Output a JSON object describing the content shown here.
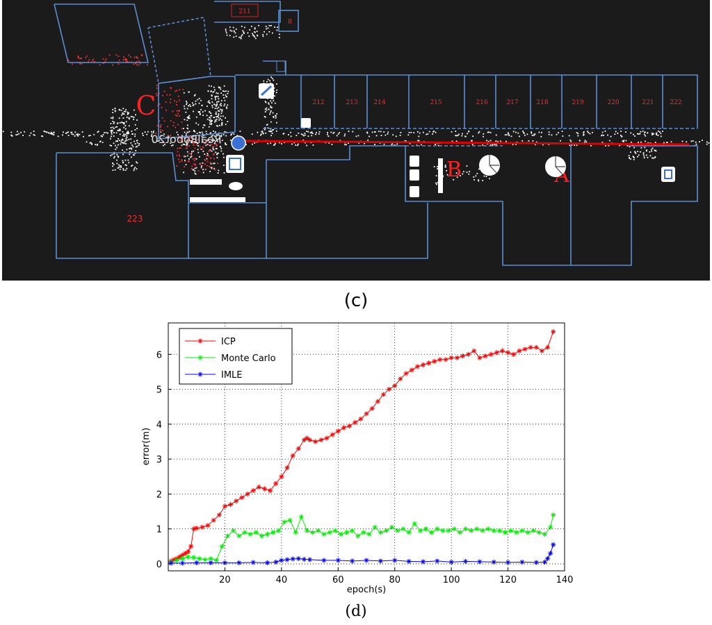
{
  "figure": {
    "caption_c": "(c)",
    "caption_d": "(d)"
  },
  "map": {
    "rooms": [
      "211",
      "8",
      "212",
      "213",
      "214",
      "215",
      "216",
      "217",
      "218",
      "219",
      "220",
      "221",
      "222",
      "223"
    ],
    "point_labels": [
      "A",
      "B",
      "C"
    ],
    "robot_text": "RealRobot20",
    "colors": {
      "background": "#1b1b1b",
      "walls": "#5b8fd6",
      "path": "#e00000",
      "room_labels": "#ff2a2a",
      "scan": "#ffffff"
    }
  },
  "chart_data": {
    "type": "line",
    "xlabel": "epoch(s)",
    "ylabel": "error(m)",
    "xlim": [
      0,
      140
    ],
    "ylim": [
      -0.2,
      6.9
    ],
    "xticks": [
      20,
      40,
      60,
      80,
      100,
      120,
      140
    ],
    "yticks": [
      0,
      1,
      2,
      3,
      4,
      5,
      6
    ],
    "grid": true,
    "legend_position": "top-left",
    "marker": "*",
    "series": [
      {
        "name": "ICP",
        "color": "#ff0000",
        "points": [
          [
            1,
            0.08
          ],
          [
            2,
            0.12
          ],
          [
            3,
            0.15
          ],
          [
            4,
            0.2
          ],
          [
            5,
            0.25
          ],
          [
            6,
            0.3
          ],
          [
            7,
            0.35
          ],
          [
            8,
            0.5
          ],
          [
            9,
            1.0
          ],
          [
            10,
            1.02
          ],
          [
            12,
            1.05
          ],
          [
            14,
            1.1
          ],
          [
            16,
            1.25
          ],
          [
            18,
            1.4
          ],
          [
            20,
            1.65
          ],
          [
            22,
            1.7
          ],
          [
            24,
            1.8
          ],
          [
            26,
            1.9
          ],
          [
            28,
            2.0
          ],
          [
            30,
            2.1
          ],
          [
            32,
            2.2
          ],
          [
            34,
            2.15
          ],
          [
            36,
            2.1
          ],
          [
            38,
            2.3
          ],
          [
            40,
            2.5
          ],
          [
            42,
            2.75
          ],
          [
            44,
            3.1
          ],
          [
            46,
            3.3
          ],
          [
            48,
            3.55
          ],
          [
            49,
            3.6
          ],
          [
            50,
            3.55
          ],
          [
            52,
            3.5
          ],
          [
            54,
            3.55
          ],
          [
            56,
            3.6
          ],
          [
            58,
            3.7
          ],
          [
            60,
            3.8
          ],
          [
            62,
            3.9
          ],
          [
            64,
            3.95
          ],
          [
            66,
            4.05
          ],
          [
            68,
            4.15
          ],
          [
            70,
            4.3
          ],
          [
            72,
            4.45
          ],
          [
            74,
            4.65
          ],
          [
            76,
            4.85
          ],
          [
            78,
            5.0
          ],
          [
            80,
            5.1
          ],
          [
            82,
            5.3
          ],
          [
            84,
            5.45
          ],
          [
            86,
            5.55
          ],
          [
            88,
            5.65
          ],
          [
            90,
            5.7
          ],
          [
            92,
            5.75
          ],
          [
            94,
            5.8
          ],
          [
            96,
            5.85
          ],
          [
            98,
            5.85
          ],
          [
            100,
            5.9
          ],
          [
            102,
            5.9
          ],
          [
            104,
            5.95
          ],
          [
            106,
            6.0
          ],
          [
            108,
            6.1
          ],
          [
            110,
            5.9
          ],
          [
            112,
            5.95
          ],
          [
            114,
            6.0
          ],
          [
            116,
            6.05
          ],
          [
            118,
            6.1
          ],
          [
            120,
            6.05
          ],
          [
            122,
            6.0
          ],
          [
            124,
            6.1
          ],
          [
            126,
            6.15
          ],
          [
            128,
            6.2
          ],
          [
            130,
            6.2
          ],
          [
            132,
            6.1
          ],
          [
            134,
            6.2
          ],
          [
            136,
            6.65
          ]
        ]
      },
      {
        "name": "Monte Carlo",
        "color": "#00ee00",
        "points": [
          [
            1,
            0.05
          ],
          [
            3,
            0.1
          ],
          [
            5,
            0.15
          ],
          [
            7,
            0.2
          ],
          [
            9,
            0.18
          ],
          [
            11,
            0.15
          ],
          [
            13,
            0.12
          ],
          [
            15,
            0.15
          ],
          [
            17,
            0.1
          ],
          [
            19,
            0.5
          ],
          [
            21,
            0.8
          ],
          [
            23,
            0.95
          ],
          [
            25,
            0.8
          ],
          [
            27,
            0.9
          ],
          [
            29,
            0.85
          ],
          [
            31,
            0.9
          ],
          [
            33,
            0.8
          ],
          [
            35,
            0.85
          ],
          [
            37,
            0.9
          ],
          [
            39,
            0.95
          ],
          [
            41,
            1.2
          ],
          [
            43,
            1.25
          ],
          [
            45,
            0.9
          ],
          [
            47,
            1.35
          ],
          [
            49,
            0.95
          ],
          [
            51,
            0.9
          ],
          [
            53,
            0.95
          ],
          [
            55,
            0.85
          ],
          [
            57,
            0.9
          ],
          [
            59,
            0.95
          ],
          [
            61,
            0.85
          ],
          [
            63,
            0.9
          ],
          [
            65,
            0.95
          ],
          [
            67,
            0.8
          ],
          [
            69,
            0.9
          ],
          [
            71,
            0.85
          ],
          [
            73,
            1.05
          ],
          [
            75,
            0.9
          ],
          [
            77,
            0.95
          ],
          [
            79,
            1.05
          ],
          [
            81,
            0.95
          ],
          [
            83,
            1.0
          ],
          [
            85,
            0.9
          ],
          [
            87,
            1.15
          ],
          [
            89,
            0.95
          ],
          [
            91,
            1.0
          ],
          [
            93,
            0.9
          ],
          [
            95,
            1.0
          ],
          [
            97,
            0.95
          ],
          [
            99,
            0.95
          ],
          [
            101,
            1.0
          ],
          [
            103,
            0.9
          ],
          [
            105,
            1.0
          ],
          [
            107,
            0.95
          ],
          [
            109,
            1.0
          ],
          [
            111,
            0.95
          ],
          [
            113,
            1.0
          ],
          [
            115,
            0.95
          ],
          [
            117,
            0.95
          ],
          [
            119,
            0.9
          ],
          [
            121,
            0.95
          ],
          [
            123,
            0.9
          ],
          [
            125,
            0.95
          ],
          [
            127,
            0.9
          ],
          [
            129,
            0.95
          ],
          [
            131,
            0.9
          ],
          [
            133,
            0.85
          ],
          [
            135,
            1.05
          ],
          [
            136,
            1.4
          ]
        ]
      },
      {
        "name": "IMLE",
        "color": "#0000ff",
        "points": [
          [
            1,
            0.02
          ],
          [
            5,
            0.02
          ],
          [
            10,
            0.03
          ],
          [
            15,
            0.03
          ],
          [
            20,
            0.03
          ],
          [
            25,
            0.03
          ],
          [
            30,
            0.04
          ],
          [
            35,
            0.03
          ],
          [
            38,
            0.05
          ],
          [
            40,
            0.1
          ],
          [
            42,
            0.12
          ],
          [
            44,
            0.14
          ],
          [
            46,
            0.15
          ],
          [
            48,
            0.13
          ],
          [
            50,
            0.12
          ],
          [
            55,
            0.1
          ],
          [
            60,
            0.1
          ],
          [
            65,
            0.08
          ],
          [
            70,
            0.1
          ],
          [
            75,
            0.08
          ],
          [
            80,
            0.1
          ],
          [
            85,
            0.07
          ],
          [
            90,
            0.06
          ],
          [
            95,
            0.08
          ],
          [
            100,
            0.05
          ],
          [
            105,
            0.07
          ],
          [
            110,
            0.06
          ],
          [
            115,
            0.05
          ],
          [
            120,
            0.04
          ],
          [
            125,
            0.05
          ],
          [
            130,
            0.04
          ],
          [
            133,
            0.05
          ],
          [
            134,
            0.15
          ],
          [
            135,
            0.3
          ],
          [
            136,
            0.55
          ]
        ]
      }
    ]
  }
}
